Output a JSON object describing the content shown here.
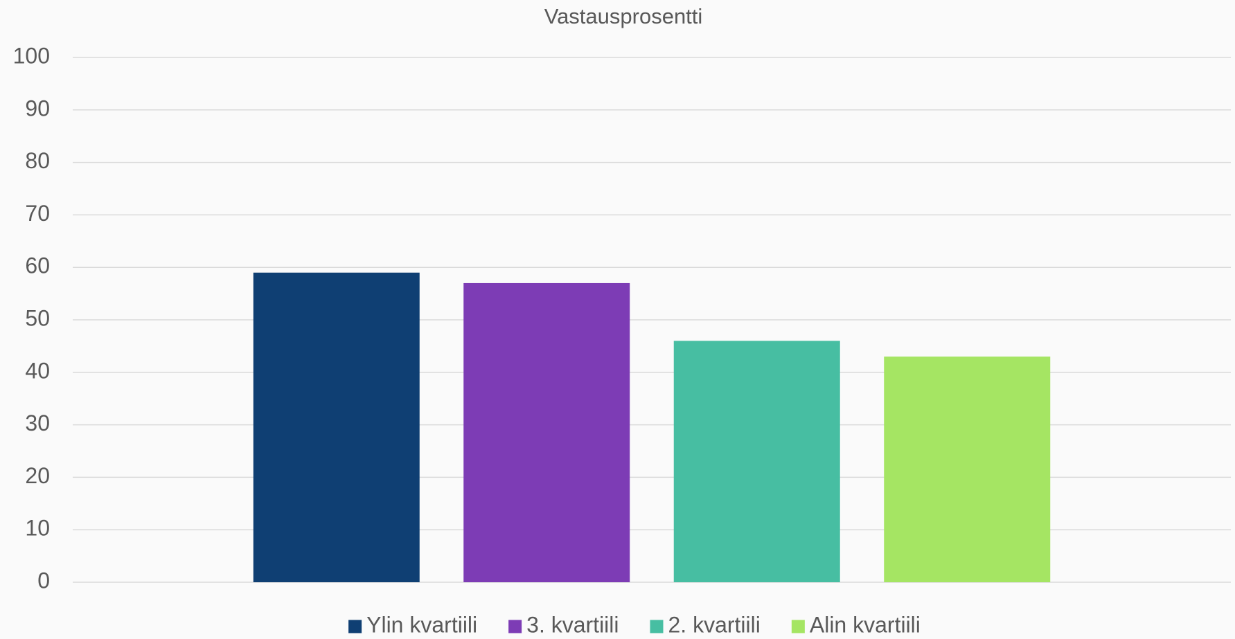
{
  "chart_data": {
    "type": "bar",
    "title": "Vastausprosentti",
    "categories": [
      null
    ],
    "series": [
      {
        "name": "Ylin kvartiili",
        "color": "#0f3f73",
        "values": [
          59
        ]
      },
      {
        "name": "3. kvartiili",
        "color": "#7d3cb5",
        "values": [
          57
        ]
      },
      {
        "name": "2. kvartiili",
        "color": "#47bea2",
        "values": [
          46
        ]
      },
      {
        "name": "Alin kvartiili",
        "color": "#a5e563",
        "values": [
          43
        ]
      }
    ],
    "ylim": [
      0,
      100
    ],
    "yticks": [
      0,
      10,
      20,
      30,
      40,
      50,
      60,
      70,
      80,
      90,
      100
    ],
    "grid": true,
    "legend": "bottom"
  }
}
